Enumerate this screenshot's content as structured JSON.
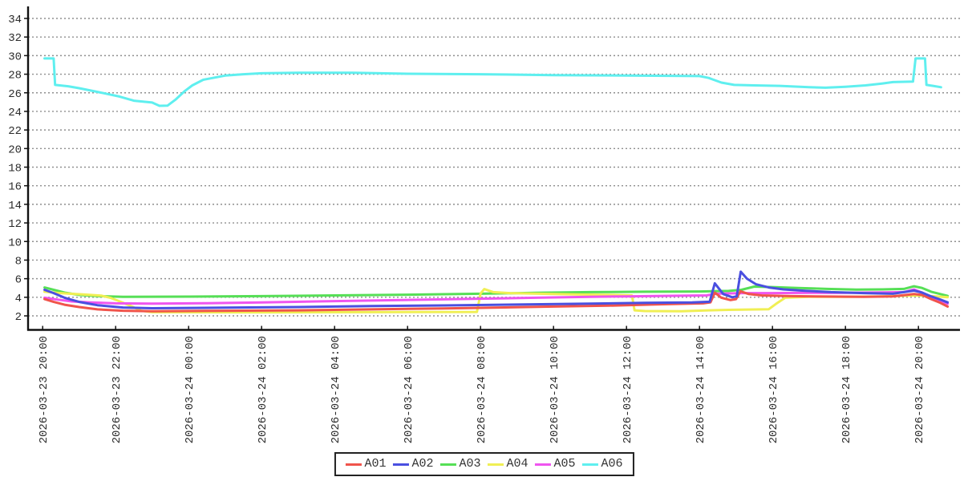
{
  "chart_data": {
    "type": "line",
    "title": "",
    "xlabel": "",
    "ylabel": "",
    "grid": "horizontal-dotted",
    "legend_position": "bottom-center",
    "background_color": "#ffffff",
    "axis_color": "#111111",
    "grid_color": "#8f8f8f",
    "text_color": "#2b2b2b",
    "x_axis": {
      "unit": "hours since 2026-03-23 20:00",
      "range_hours": [
        -0.4,
        25.15
      ],
      "tick_interval_hours": 2,
      "ticks": [
        {
          "t": 0,
          "label": "2026-03-23 20:00"
        },
        {
          "t": 2,
          "label": "2026-03-23 22:00"
        },
        {
          "t": 4,
          "label": "2026-03-24 00:00"
        },
        {
          "t": 6,
          "label": "2026-03-24 02:00"
        },
        {
          "t": 8,
          "label": "2026-03-24 04:00"
        },
        {
          "t": 10,
          "label": "2026-03-24 06:00"
        },
        {
          "t": 12,
          "label": "2026-03-24 08:00"
        },
        {
          "t": 14,
          "label": "2026-03-24 10:00"
        },
        {
          "t": 16,
          "label": "2026-03-24 12:00"
        },
        {
          "t": 18,
          "label": "2026-03-24 14:00"
        },
        {
          "t": 20,
          "label": "2026-03-24 16:00"
        },
        {
          "t": 22,
          "label": "2026-03-24 18:00"
        },
        {
          "t": 24,
          "label": "2026-03-24 20:00"
        }
      ]
    },
    "y_axis": {
      "range": [
        0.45,
        35.1
      ],
      "tick_min": 2,
      "tick_max": 34,
      "tick_step": 2,
      "tick_labels": [
        "2",
        "4",
        "6",
        "8",
        "10",
        "12",
        "14",
        "16",
        "18",
        "20",
        "22",
        "24",
        "26",
        "28",
        "30",
        "32",
        "34"
      ]
    },
    "draw_order": [
      "A03",
      "A04",
      "A05",
      "A01",
      "A02",
      "A06"
    ],
    "series": [
      {
        "name": "A01",
        "color": "#f0544c",
        "points": [
          [
            0.05,
            3.8
          ],
          [
            0.3,
            3.5
          ],
          [
            0.6,
            3.2
          ],
          [
            1.0,
            2.95
          ],
          [
            1.5,
            2.7
          ],
          [
            2.2,
            2.55
          ],
          [
            3.0,
            2.5
          ],
          [
            5.0,
            2.55
          ],
          [
            7.0,
            2.6
          ],
          [
            9.0,
            2.7
          ],
          [
            11.0,
            2.8
          ],
          [
            12.5,
            2.9
          ],
          [
            14.0,
            3.0
          ],
          [
            15.5,
            3.1
          ],
          [
            17.0,
            3.25
          ],
          [
            18.1,
            3.35
          ],
          [
            18.3,
            3.45
          ],
          [
            18.42,
            4.5
          ],
          [
            18.6,
            3.95
          ],
          [
            18.85,
            3.7
          ],
          [
            19.0,
            3.8
          ],
          [
            19.12,
            4.65
          ],
          [
            19.35,
            4.35
          ],
          [
            19.7,
            4.2
          ],
          [
            20.5,
            4.12
          ],
          [
            21.5,
            4.08
          ],
          [
            22.5,
            4.05
          ],
          [
            23.3,
            4.1
          ],
          [
            23.88,
            4.35
          ],
          [
            24.1,
            4.25
          ],
          [
            24.35,
            3.8
          ],
          [
            24.6,
            3.4
          ],
          [
            24.8,
            3.0
          ]
        ]
      },
      {
        "name": "A02",
        "color": "#4a4fe0",
        "points": [
          [
            0.05,
            4.8
          ],
          [
            0.3,
            4.45
          ],
          [
            0.6,
            3.95
          ],
          [
            1.0,
            3.5
          ],
          [
            1.5,
            3.15
          ],
          [
            2.2,
            2.9
          ],
          [
            3.0,
            2.82
          ],
          [
            5.0,
            2.88
          ],
          [
            7.0,
            2.95
          ],
          [
            9.0,
            3.05
          ],
          [
            11.0,
            3.12
          ],
          [
            13.0,
            3.22
          ],
          [
            15.0,
            3.32
          ],
          [
            16.5,
            3.4
          ],
          [
            17.8,
            3.45
          ],
          [
            18.28,
            3.52
          ],
          [
            18.42,
            5.5
          ],
          [
            18.65,
            4.35
          ],
          [
            18.9,
            4.0
          ],
          [
            19.02,
            4.1
          ],
          [
            19.13,
            6.75
          ],
          [
            19.3,
            6.0
          ],
          [
            19.55,
            5.4
          ],
          [
            19.9,
            5.05
          ],
          [
            20.3,
            4.85
          ],
          [
            20.9,
            4.7
          ],
          [
            21.6,
            4.55
          ],
          [
            22.5,
            4.45
          ],
          [
            23.3,
            4.38
          ],
          [
            23.88,
            4.72
          ],
          [
            24.1,
            4.5
          ],
          [
            24.35,
            4.1
          ],
          [
            24.6,
            3.75
          ],
          [
            24.8,
            3.45
          ]
        ]
      },
      {
        "name": "A03",
        "color": "#56df56",
        "points": [
          [
            0.05,
            5.05
          ],
          [
            0.3,
            4.8
          ],
          [
            0.6,
            4.5
          ],
          [
            1.0,
            4.25
          ],
          [
            1.5,
            4.12
          ],
          [
            2.2,
            4.05
          ],
          [
            4.0,
            4.07
          ],
          [
            6.0,
            4.12
          ],
          [
            8.0,
            4.2
          ],
          [
            10.0,
            4.28
          ],
          [
            12.0,
            4.38
          ],
          [
            13.5,
            4.48
          ],
          [
            15.0,
            4.55
          ],
          [
            16.5,
            4.6
          ],
          [
            18.0,
            4.62
          ],
          [
            18.8,
            4.68
          ],
          [
            19.15,
            4.8
          ],
          [
            19.5,
            5.15
          ],
          [
            20.0,
            5.1
          ],
          [
            20.7,
            5.0
          ],
          [
            21.5,
            4.9
          ],
          [
            22.3,
            4.82
          ],
          [
            23.0,
            4.85
          ],
          [
            23.6,
            4.9
          ],
          [
            23.88,
            5.18
          ],
          [
            24.1,
            5.0
          ],
          [
            24.35,
            4.6
          ],
          [
            24.6,
            4.35
          ],
          [
            24.8,
            4.15
          ]
        ]
      },
      {
        "name": "A04",
        "color": "#f0ef54",
        "points": [
          [
            0.05,
            4.6
          ],
          [
            0.3,
            4.5
          ],
          [
            0.7,
            4.4
          ],
          [
            1.1,
            4.3
          ],
          [
            1.6,
            4.18
          ],
          [
            1.85,
            3.95
          ],
          [
            2.15,
            3.5
          ],
          [
            2.45,
            3.0
          ],
          [
            2.7,
            2.55
          ],
          [
            3.0,
            2.4
          ],
          [
            6.0,
            2.38
          ],
          [
            9.0,
            2.4
          ],
          [
            11.9,
            2.42
          ],
          [
            12.0,
            4.4
          ],
          [
            12.1,
            4.88
          ],
          [
            12.35,
            4.55
          ],
          [
            12.8,
            4.45
          ],
          [
            13.6,
            4.38
          ],
          [
            14.6,
            4.3
          ],
          [
            15.6,
            4.25
          ],
          [
            16.15,
            4.2
          ],
          [
            16.22,
            2.6
          ],
          [
            16.5,
            2.52
          ],
          [
            17.5,
            2.5
          ],
          [
            18.25,
            2.6
          ],
          [
            18.8,
            2.65
          ],
          [
            19.9,
            2.72
          ],
          [
            20.1,
            3.3
          ],
          [
            20.35,
            3.95
          ],
          [
            21.0,
            4.05
          ],
          [
            22.0,
            4.05
          ],
          [
            23.0,
            4.1
          ],
          [
            23.88,
            4.2
          ],
          [
            24.2,
            4.15
          ],
          [
            24.5,
            4.1
          ],
          [
            24.8,
            4.0
          ]
        ]
      },
      {
        "name": "A05",
        "color": "#ef55ef",
        "points": [
          [
            0.05,
            3.95
          ],
          [
            0.4,
            3.75
          ],
          [
            0.8,
            3.55
          ],
          [
            1.3,
            3.45
          ],
          [
            2.0,
            3.35
          ],
          [
            3.0,
            3.32
          ],
          [
            4.5,
            3.36
          ],
          [
            6.0,
            3.45
          ],
          [
            7.5,
            3.55
          ],
          [
            9.0,
            3.65
          ],
          [
            10.5,
            3.75
          ],
          [
            12.0,
            3.85
          ],
          [
            13.5,
            3.95
          ],
          [
            15.0,
            4.05
          ],
          [
            16.0,
            4.1
          ],
          [
            17.0,
            4.15
          ],
          [
            18.2,
            4.2
          ],
          [
            18.45,
            4.38
          ],
          [
            19.2,
            4.45
          ],
          [
            20.0,
            4.45
          ],
          [
            21.0,
            4.48
          ],
          [
            22.0,
            4.48
          ],
          [
            23.0,
            4.52
          ],
          [
            23.6,
            4.55
          ],
          [
            23.88,
            4.85
          ],
          [
            24.1,
            4.5
          ],
          [
            24.35,
            4.0
          ],
          [
            24.6,
            3.6
          ],
          [
            24.8,
            3.3
          ]
        ]
      },
      {
        "name": "A06",
        "color": "#5fefef",
        "points": [
          [
            0.05,
            29.7
          ],
          [
            0.3,
            29.7
          ],
          [
            0.34,
            26.85
          ],
          [
            0.7,
            26.7
          ],
          [
            1.0,
            26.5
          ],
          [
            1.5,
            26.1
          ],
          [
            2.1,
            25.6
          ],
          [
            2.5,
            25.15
          ],
          [
            3.0,
            24.95
          ],
          [
            3.2,
            24.6
          ],
          [
            3.42,
            24.62
          ],
          [
            3.65,
            25.3
          ],
          [
            3.9,
            26.2
          ],
          [
            4.1,
            26.8
          ],
          [
            4.4,
            27.4
          ],
          [
            5.0,
            27.85
          ],
          [
            5.5,
            28.0
          ],
          [
            6.0,
            28.1
          ],
          [
            7.0,
            28.15
          ],
          [
            8.5,
            28.15
          ],
          [
            10.0,
            28.05
          ],
          [
            12.0,
            28.0
          ],
          [
            14.0,
            27.9
          ],
          [
            16.0,
            27.85
          ],
          [
            18.0,
            27.8
          ],
          [
            18.25,
            27.6
          ],
          [
            18.6,
            27.1
          ],
          [
            18.95,
            26.85
          ],
          [
            19.5,
            26.8
          ],
          [
            20.2,
            26.75
          ],
          [
            21.0,
            26.6
          ],
          [
            21.45,
            26.55
          ],
          [
            22.0,
            26.65
          ],
          [
            22.55,
            26.8
          ],
          [
            23.0,
            27.0
          ],
          [
            23.3,
            27.15
          ],
          [
            23.85,
            27.2
          ],
          [
            23.92,
            29.7
          ],
          [
            24.18,
            29.7
          ],
          [
            24.22,
            26.85
          ],
          [
            24.4,
            26.75
          ],
          [
            24.62,
            26.6
          ]
        ]
      }
    ],
    "legend": {
      "items": [
        {
          "label": "A01",
          "color": "#f0544c"
        },
        {
          "label": "A02",
          "color": "#4a4fe0"
        },
        {
          "label": "A03",
          "color": "#56df56"
        },
        {
          "label": "A04",
          "color": "#f0ef54"
        },
        {
          "label": "A05",
          "color": "#ef55ef"
        },
        {
          "label": "A06",
          "color": "#5fefef"
        }
      ]
    }
  }
}
